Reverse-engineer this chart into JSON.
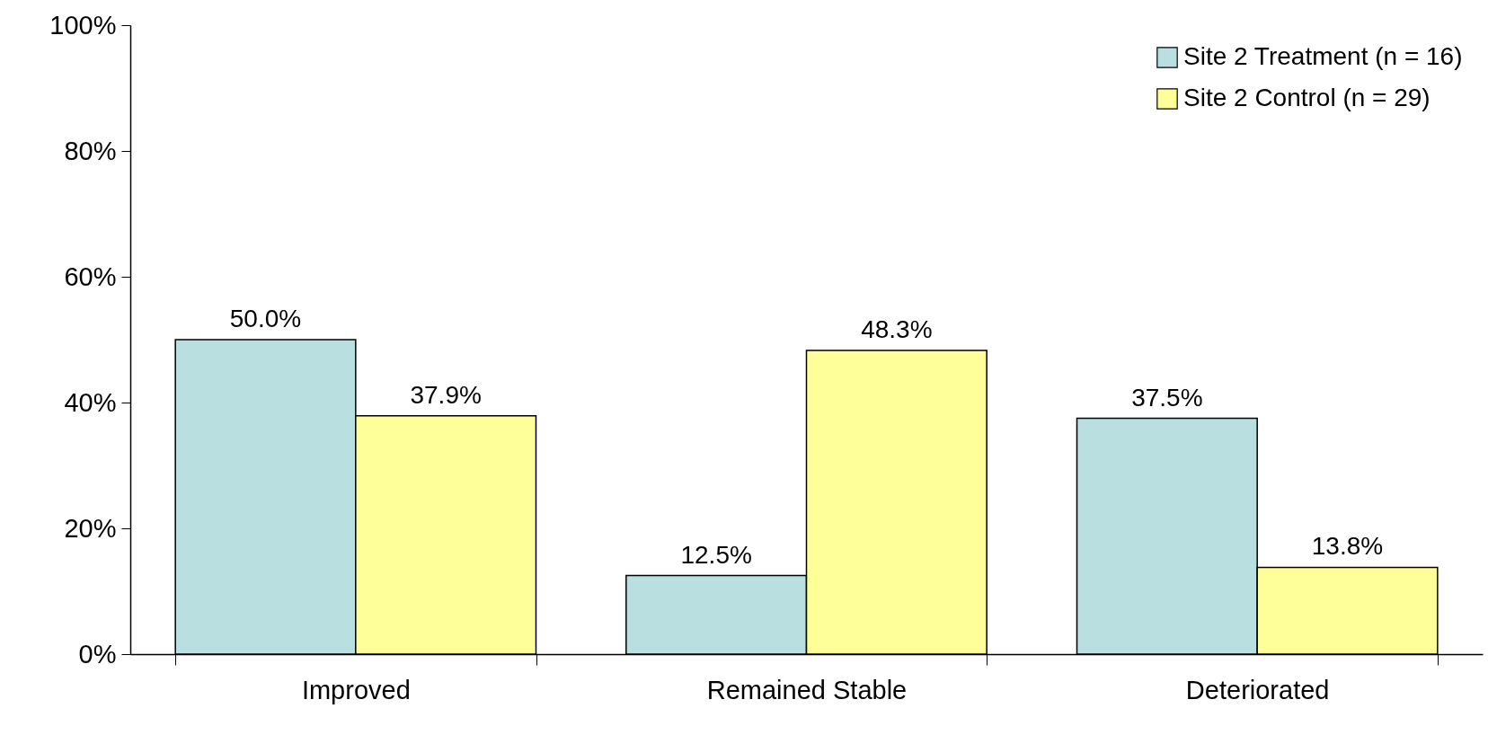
{
  "chart_data": {
    "type": "bar",
    "categories": [
      "Improved",
      "Remained Stable",
      "Deteriorated"
    ],
    "series": [
      {
        "name": "Site 2 Treatment (n = 16)",
        "color": "#b9dfe1",
        "values": [
          50.0,
          12.5,
          37.5
        ],
        "value_labels": [
          "50.0%",
          "12.5%",
          "37.5%"
        ]
      },
      {
        "name": "Site 2 Control (n = 29)",
        "color": "#ffff99",
        "values": [
          37.9,
          48.3,
          13.8
        ],
        "value_labels": [
          "37.9%",
          "48.3%",
          "13.8%"
        ]
      }
    ],
    "ylim": [
      0,
      100
    ],
    "yticks": [
      {
        "value": 0,
        "label": "0%"
      },
      {
        "value": 20,
        "label": "20%"
      },
      {
        "value": 40,
        "label": "40%"
      },
      {
        "value": 60,
        "label": "60%"
      },
      {
        "value": 80,
        "label": "80%"
      },
      {
        "value": 100,
        "label": "100%"
      }
    ],
    "grid": false,
    "legend": "top right"
  }
}
